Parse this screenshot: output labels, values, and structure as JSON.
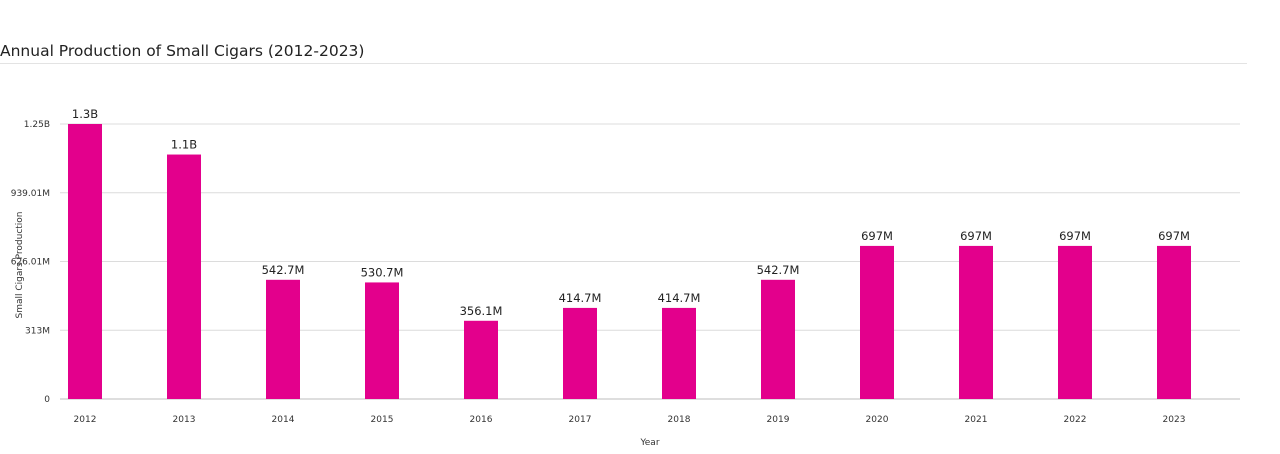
{
  "chart_data": {
    "type": "bar",
    "title": "Annual Production of Small Cigars (2012-2023)",
    "xlabel": "Year",
    "ylabel": "Small Cigars Production",
    "categories": [
      "2012",
      "2013",
      "2014",
      "2015",
      "2016",
      "2017",
      "2018",
      "2019",
      "2020",
      "2021",
      "2022",
      "2023"
    ],
    "values": [
      1252040000,
      1113000000,
      542700000,
      530700000,
      356100000,
      414700000,
      414700000,
      542700000,
      697000000,
      697000000,
      697000000,
      697000000
    ],
    "data_labels": [
      "1.3B",
      "1.1B",
      "542.7M",
      "530.7M",
      "356.1M",
      "414.7M",
      "414.7M",
      "542.7M",
      "697M",
      "697M",
      "697M",
      "697M"
    ],
    "yticks": [
      0,
      313000000,
      626010000,
      939010000,
      1252020000
    ],
    "ytick_labels": [
      "0",
      "313M",
      "626.01M",
      "939.01M",
      "1.25B"
    ],
    "ylim": [
      0,
      1252020000
    ],
    "bar_color": "#e3008c",
    "grid": true,
    "legend": "none"
  }
}
